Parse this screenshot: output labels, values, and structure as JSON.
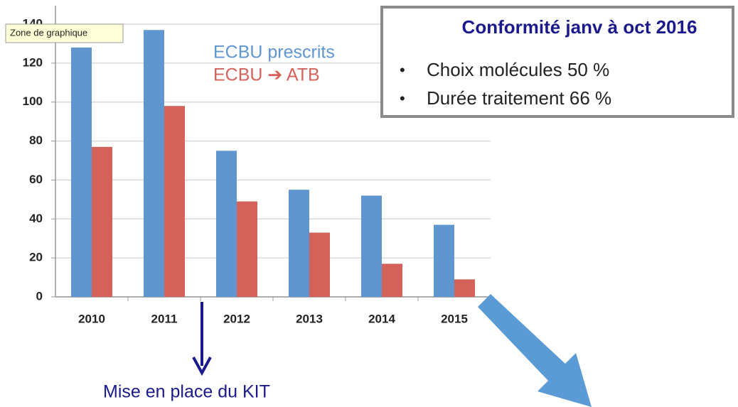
{
  "chart_data": {
    "type": "bar",
    "categories": [
      "2010",
      "2011",
      "2012",
      "2013",
      "2014",
      "2015"
    ],
    "series": [
      {
        "name": "ECBU prescrits",
        "color": "#6096cf",
        "values": [
          128,
          137,
          75,
          55,
          52,
          37
        ]
      },
      {
        "name": "ECBU ➔ ATB",
        "color": "#d4625a",
        "values": [
          77,
          98,
          49,
          33,
          17,
          9
        ]
      }
    ],
    "ylim": [
      0,
      140
    ],
    "yticks": [
      0,
      20,
      40,
      60,
      80,
      100,
      120,
      140
    ],
    "grid": true,
    "tooltip": "Zone de graphique",
    "box": {
      "title": "Conformité janv à oct 2016",
      "items": [
        "Choix molécules 50 %",
        "Durée traitement 66 %"
      ]
    },
    "note": "Mise en place du KIT"
  }
}
